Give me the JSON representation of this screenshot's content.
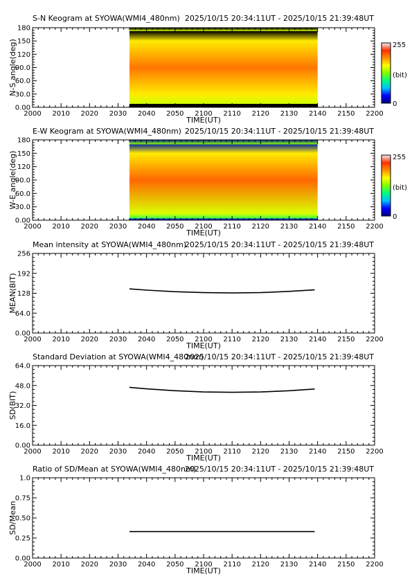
{
  "colors": {
    "axis": "#000000",
    "colormap": [
      "#000080",
      "#0000ff",
      "#00c0ff",
      "#00ff80",
      "#80ff00",
      "#ffff00",
      "#ff9000",
      "#ff3000",
      "#f0f0f0"
    ]
  },
  "chart_data": [
    {
      "type": "heatmap",
      "title_left": "S-N Keogram at SYOWA(WMI4_480nm)",
      "title_right": "2025/10/15 20:34:11UT - 2025/10/15 21:39:48UT",
      "xlabel": "TIME(UT)",
      "ylabel": "N-S angle(deg)",
      "x_ticks": [
        "2000",
        "2010",
        "2020",
        "2030",
        "2040",
        "2050",
        "2100",
        "2110",
        "2120",
        "2130",
        "2140",
        "2150",
        "2200"
      ],
      "y_ticks": [
        "0.00",
        "30.0",
        "60.0",
        "90.0",
        "120",
        "150",
        "180"
      ],
      "ylim": [
        0,
        180
      ],
      "data_span": [
        "2034",
        "2140"
      ],
      "colorbar": {
        "min": "0",
        "max": "255",
        "unit": "(bit)"
      },
      "profile": {
        "edge_bands": [
          {
            "from": 0,
            "to": 8,
            "color": "#000000"
          },
          {
            "from": 172,
            "to": 180,
            "color": "#000000"
          }
        ],
        "levels": [
          [
            8,
            148
          ],
          [
            30,
            165
          ],
          [
            90,
            200
          ],
          [
            150,
            165
          ],
          [
            172,
            148
          ]
        ]
      }
    },
    {
      "type": "heatmap",
      "title_left": "E-W Keogram at SYOWA(WMI4_480nm)",
      "title_right": "2025/10/15 20:34:11UT - 2025/10/15 21:39:48UT",
      "xlabel": "TIME(UT)",
      "ylabel": "W-E angle(deg)",
      "x_ticks": [
        "2000",
        "2010",
        "2020",
        "2030",
        "2040",
        "2050",
        "2100",
        "2110",
        "2120",
        "2130",
        "2140",
        "2150",
        "2200"
      ],
      "y_ticks": [
        "0.00",
        "30.0",
        "60.0",
        "90.0",
        "120",
        "150",
        "180"
      ],
      "ylim": [
        0,
        180
      ],
      "data_span": [
        "2034",
        "2140"
      ],
      "colorbar": {
        "min": "0",
        "max": "255",
        "unit": "(bit)"
      },
      "profile": {
        "edge_bands": [
          {
            "from": 0,
            "to": 4,
            "color": "#1030c0"
          },
          {
            "from": 170,
            "to": 180,
            "color": "#0a2a9a"
          }
        ],
        "levels": [
          [
            4,
            110
          ],
          [
            15,
            150
          ],
          [
            90,
            205
          ],
          [
            150,
            165
          ],
          [
            170,
            130
          ]
        ]
      }
    },
    {
      "type": "line",
      "title_left": "Mean intensity at SYOWA(WMI4_480nm)",
      "title_right": "2025/10/15 20:34:11UT - 2025/10/15 21:39:48UT",
      "xlabel": "TIME(UT)",
      "ylabel": "MEAN(BIT)",
      "x_ticks": [
        "2000",
        "2010",
        "2020",
        "2030",
        "2040",
        "2050",
        "2100",
        "2110",
        "2120",
        "2130",
        "2140",
        "2150",
        "2200"
      ],
      "y_ticks": [
        "0.00",
        "64.0",
        "128",
        "192",
        "256"
      ],
      "ylim": [
        0,
        256
      ],
      "series": [
        {
          "x": [
            "2034",
            "2040",
            "2050",
            "2100",
            "2110",
            "2120",
            "2130",
            "2139"
          ],
          "y": [
            142,
            138,
            133,
            130,
            129,
            130,
            134,
            139
          ]
        }
      ]
    },
    {
      "type": "line",
      "title_left": "Standard Deviation at SYOWA(WMI4_480nm)",
      "title_right": "2025/10/15 20:34:11UT - 2025/10/15 21:39:48UT",
      "xlabel": "TIME(UT)",
      "ylabel": "SD(BIT)",
      "x_ticks": [
        "2000",
        "2010",
        "2020",
        "2030",
        "2040",
        "2050",
        "2100",
        "2110",
        "2120",
        "2130",
        "2140",
        "2150",
        "2200"
      ],
      "y_ticks": [
        "0.00",
        "16.0",
        "32.0",
        "48.0",
        "64.0"
      ],
      "ylim": [
        0,
        64
      ],
      "series": [
        {
          "x": [
            "2034",
            "2040",
            "2050",
            "2100",
            "2110",
            "2120",
            "2130",
            "2139"
          ],
          "y": [
            46.5,
            45.3,
            43.8,
            42.8,
            42.5,
            42.8,
            43.8,
            45.2
          ]
        }
      ]
    },
    {
      "type": "line",
      "title_left": "Ratio of SD/Mean at SYOWA(WMI4_480nm)",
      "title_right": "2025/10/15 20:34:11UT - 2025/10/15 21:39:48UT",
      "xlabel": "TIME(UT)",
      "ylabel": "SD/Mean",
      "x_ticks": [
        "2000",
        "2010",
        "2020",
        "2030",
        "2040",
        "2050",
        "2100",
        "2110",
        "2120",
        "2130",
        "2140",
        "2150",
        "2200"
      ],
      "y_ticks": [
        "0.00",
        "0.25",
        "0.50",
        "0.75",
        "1.0"
      ],
      "ylim": [
        0,
        1
      ],
      "series": [
        {
          "x": [
            "2034",
            "2050",
            "2100",
            "2120",
            "2139"
          ],
          "y": [
            0.33,
            0.33,
            0.33,
            0.33,
            0.33
          ]
        }
      ]
    }
  ]
}
